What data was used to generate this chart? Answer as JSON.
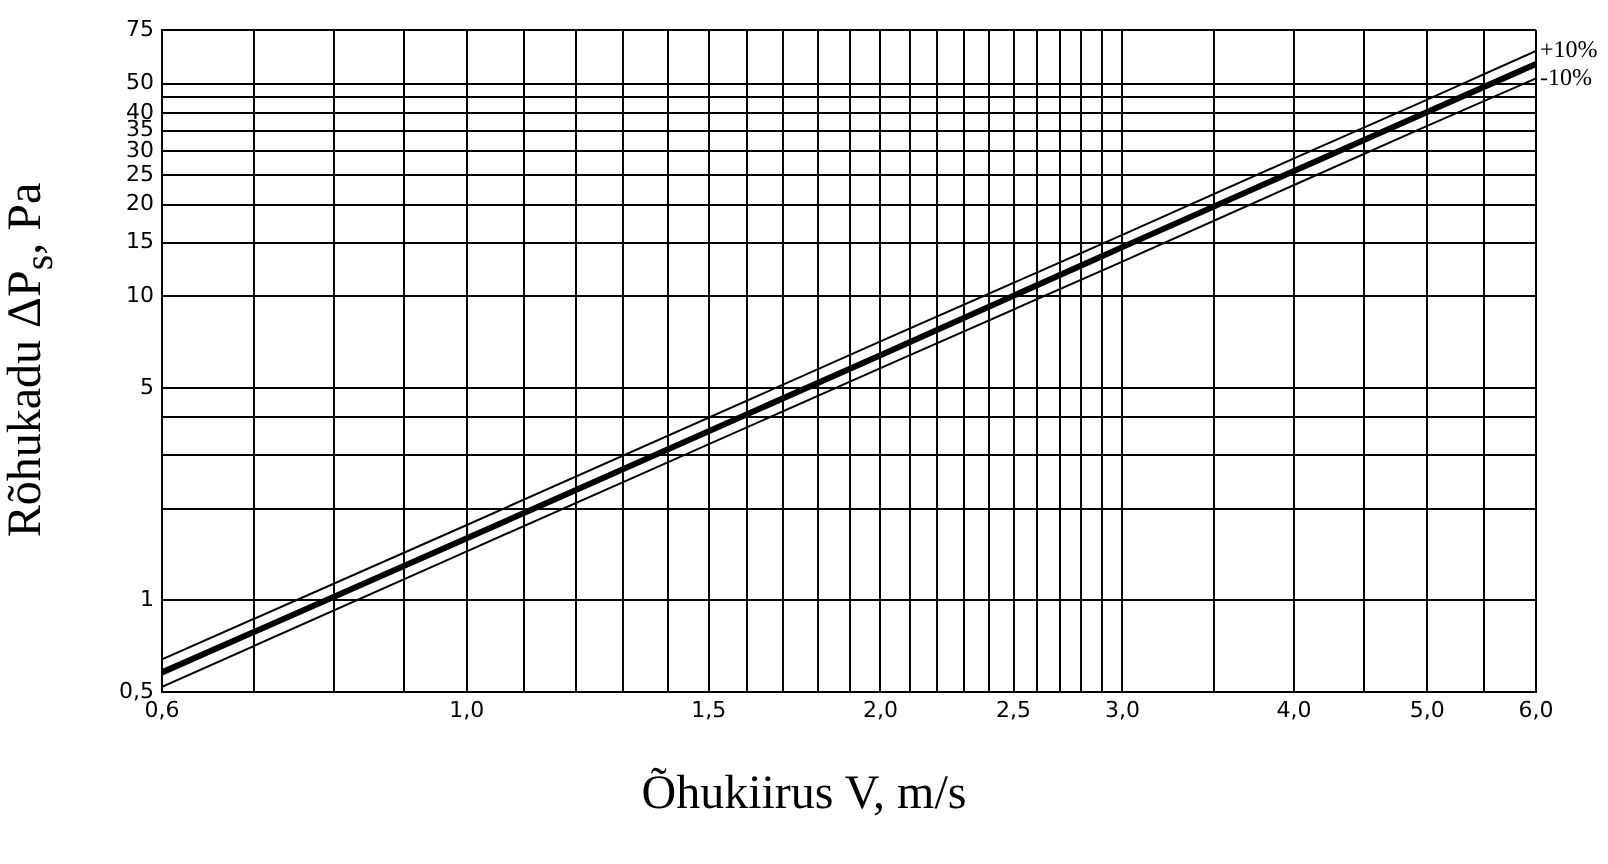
{
  "chart_data": {
    "type": "line",
    "xlabel": "Õhukiirus V, m/s",
    "ylabel": "Rõhukadu  ΔP$_{s}$,  Pa",
    "xlim": [
      0.6,
      6.0
    ],
    "xticks": [
      {
        "value": 0.6,
        "label": "0,6"
      },
      {
        "value": 0.7,
        "label": null
      },
      {
        "value": 0.8,
        "label": null
      },
      {
        "value": 0.9,
        "label": null
      },
      {
        "value": 1.0,
        "label": "1,0"
      },
      {
        "value": 1.1,
        "label": null
      },
      {
        "value": 1.2,
        "label": null
      },
      {
        "value": 1.3,
        "label": null
      },
      {
        "value": 1.4,
        "label": null
      },
      {
        "value": 1.5,
        "label": "1,5"
      },
      {
        "value": 1.6,
        "label": null
      },
      {
        "value": 1.7,
        "label": null
      },
      {
        "value": 1.8,
        "label": null
      },
      {
        "value": 1.9,
        "label": null
      },
      {
        "value": 2.0,
        "label": "2,0"
      },
      {
        "value": 2.1,
        "label": null
      },
      {
        "value": 2.2,
        "label": null
      },
      {
        "value": 2.3,
        "label": null
      },
      {
        "value": 2.4,
        "label": null
      },
      {
        "value": 2.5,
        "label": "2,5"
      },
      {
        "value": 2.6,
        "label": null
      },
      {
        "value": 2.7,
        "label": null
      },
      {
        "value": 2.8,
        "label": null
      },
      {
        "value": 2.9,
        "label": null
      },
      {
        "value": 3.0,
        "label": "3,0"
      },
      {
        "value": 3.5,
        "label": null
      },
      {
        "value": 4.0,
        "label": "4,0"
      },
      {
        "value": 4.5,
        "label": null
      },
      {
        "value": 5.0,
        "label": "5,0"
      },
      {
        "value": 5.5,
        "label": null
      },
      {
        "value": 6.0,
        "label": "6,0"
      }
    ],
    "ylim": [
      0.5,
      75
    ],
    "yticks": [
      {
        "value": 0.5,
        "label": "0,5"
      },
      {
        "value": 1,
        "label": "1"
      },
      {
        "value": 2,
        "label": null
      },
      {
        "value": 3,
        "label": null
      },
      {
        "value": 4,
        "label": null
      },
      {
        "value": 5,
        "label": "5"
      },
      {
        "value": 10,
        "label": "10"
      },
      {
        "value": 15,
        "label": "15"
      },
      {
        "value": 20,
        "label": "20"
      },
      {
        "value": 25,
        "label": "25"
      },
      {
        "value": 30,
        "label": "30"
      },
      {
        "value": 35,
        "label": "35"
      },
      {
        "value": 40,
        "label": "40"
      },
      {
        "value": 45,
        "label": null
      },
      {
        "value": 50,
        "label": "50"
      },
      {
        "value": 75,
        "label": "75"
      }
    ],
    "grid": true,
    "legend": false,
    "log": "xy",
    "marker": "none",
    "series": [
      {
        "color": "#000000",
        "x": [
          0.6,
          1.0,
          2.0,
          3.0,
          4.0,
          5.0,
          6.0
        ],
        "values": [
          0.58,
          1.6,
          6.4,
          14.5,
          25.8,
          40.3,
          58
        ]
      },
      {
        "name": "+10%",
        "color": "#000000",
        "x": [
          0.6,
          1.0,
          2.0,
          3.0,
          4.0,
          5.0,
          6.0
        ],
        "values": [
          0.64,
          1.77,
          7.1,
          15.9,
          28.4,
          44.3,
          64
        ]
      },
      {
        "name": "-10%",
        "color": "#000000",
        "x": [
          0.6,
          1.0,
          2.0,
          3.0,
          4.0,
          5.0,
          6.0
        ],
        "values": [
          0.52,
          1.45,
          5.8,
          13,
          23.2,
          36.3,
          52
        ]
      }
    ]
  }
}
